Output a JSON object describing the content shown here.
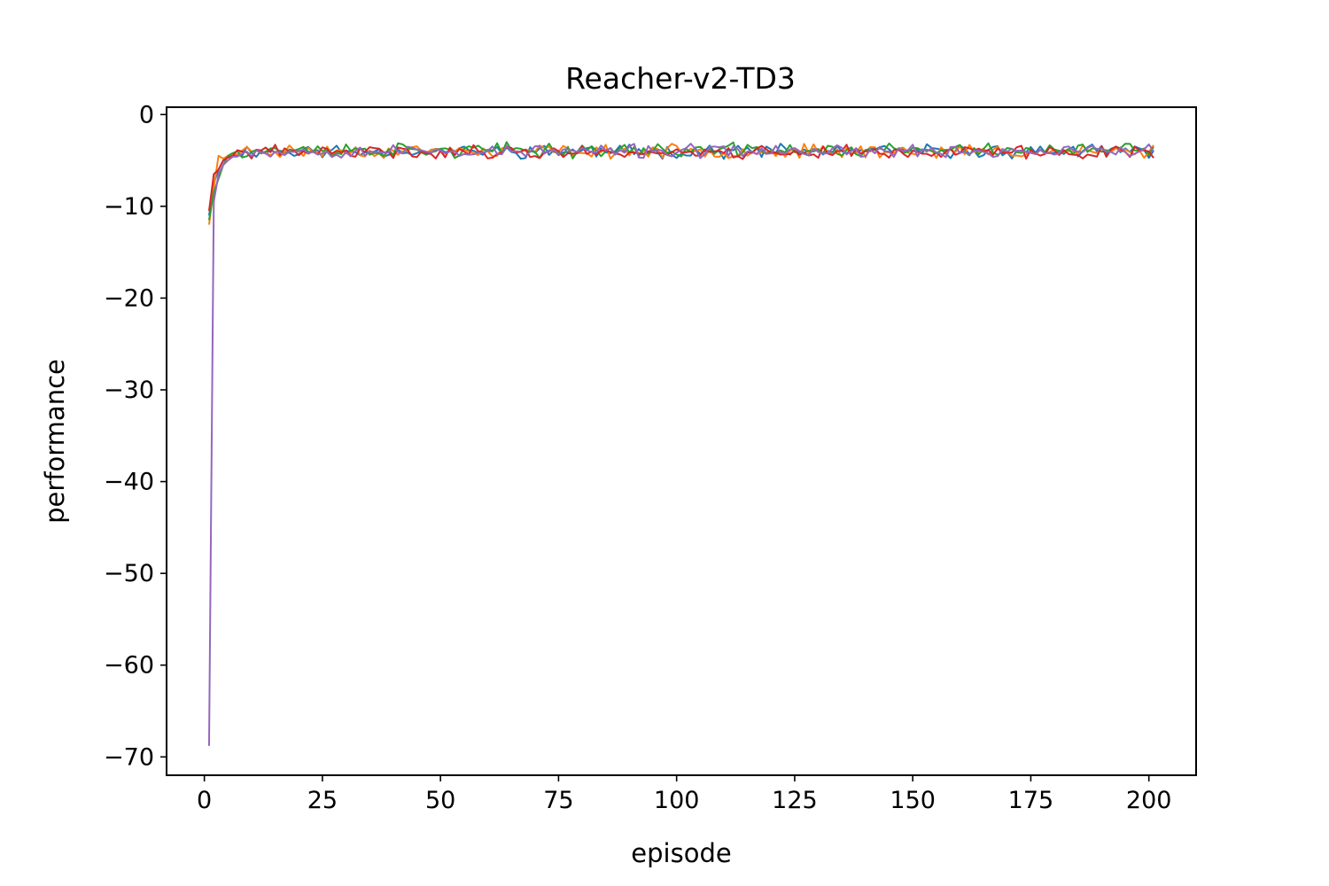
{
  "chart_data": {
    "type": "line",
    "title": "Reacher-v2-TD3",
    "xlabel": "episode",
    "ylabel": "performance",
    "xlim": [
      -8,
      210
    ],
    "ylim": [
      -72,
      0.8
    ],
    "xticks": [
      0,
      25,
      50,
      75,
      100,
      125,
      150,
      175,
      200
    ],
    "yticks": [
      0,
      -10,
      -20,
      -30,
      -40,
      -50,
      -60,
      -70
    ],
    "xtick_labels": [
      "0",
      "25",
      "50",
      "75",
      "100",
      "125",
      "150",
      "175",
      "200"
    ],
    "ytick_labels": [
      "0",
      "−10",
      "−20",
      "−30",
      "−40",
      "−50",
      "−60",
      "−70"
    ],
    "grid": false,
    "x": {
      "start": 1,
      "end": 201,
      "step": 1
    },
    "series": [
      {
        "color": "#1f77b4",
        "start": [
          -11.0,
          -7.5,
          -6.0,
          -5.0,
          -4.6,
          -4.4
        ],
        "mean": -4.0,
        "amp": 0.55,
        "seed": 11
      },
      {
        "color": "#ff7f0e",
        "start": [
          -12.0,
          -8.0,
          -4.5,
          -4.8,
          -4.5,
          -4.3
        ],
        "mean": -4.0,
        "amp": 0.55,
        "seed": 23
      },
      {
        "color": "#2ca02c",
        "start": [
          -11.5,
          -8.5,
          -7.0,
          -5.5,
          -4.5,
          -4.2
        ],
        "mean": -3.9,
        "amp": 0.6,
        "seed": 37
      },
      {
        "color": "#d62728",
        "start": [
          -10.5,
          -6.5,
          -6.0,
          -5.0,
          -4.7,
          -4.5
        ],
        "mean": -4.1,
        "amp": 0.55,
        "seed": 41
      },
      {
        "color": "#9467bd",
        "start": [
          -68.8,
          -9.5,
          -6.5,
          -5.5,
          -5.0,
          -4.6
        ],
        "mean": -4.0,
        "amp": 0.55,
        "seed": 53
      }
    ]
  }
}
